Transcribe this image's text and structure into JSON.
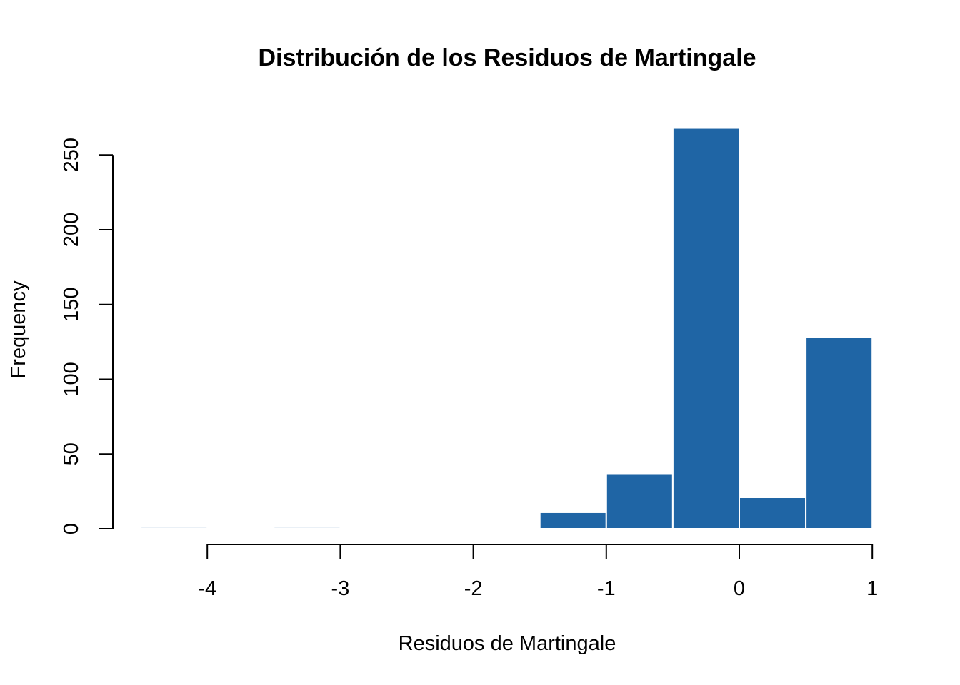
{
  "chart_data": {
    "type": "bar",
    "title": "Distribución de los Residuos de Martingale",
    "xlabel": "Residuos de Martingale",
    "ylabel": "Frequency",
    "bins": [
      {
        "start": -4.5,
        "end": -4.0,
        "count": 1
      },
      {
        "start": -4.0,
        "end": -3.5,
        "count": 0
      },
      {
        "start": -3.5,
        "end": -3.0,
        "count": 1
      },
      {
        "start": -3.0,
        "end": -2.5,
        "count": 0
      },
      {
        "start": -2.5,
        "end": -2.0,
        "count": 0
      },
      {
        "start": -2.0,
        "end": -1.5,
        "count": 0
      },
      {
        "start": -1.5,
        "end": -1.0,
        "count": 11
      },
      {
        "start": -1.0,
        "end": -0.5,
        "count": 37
      },
      {
        "start": -0.5,
        "end": 0.0,
        "count": 268
      },
      {
        "start": 0.0,
        "end": 0.5,
        "count": 21
      },
      {
        "start": 0.5,
        "end": 1.0,
        "count": 128
      }
    ],
    "x_ticks": [
      "-4",
      "-3",
      "-2",
      "-1",
      "0",
      "1"
    ],
    "y_ticks": [
      "0",
      "50",
      "100",
      "150",
      "200",
      "250"
    ],
    "xlim": [
      -4.5,
      1
    ],
    "ylim": [
      0,
      268
    ],
    "bar_color": "#1f65a5",
    "bar_border_color": "#ffffff",
    "grid": false
  }
}
